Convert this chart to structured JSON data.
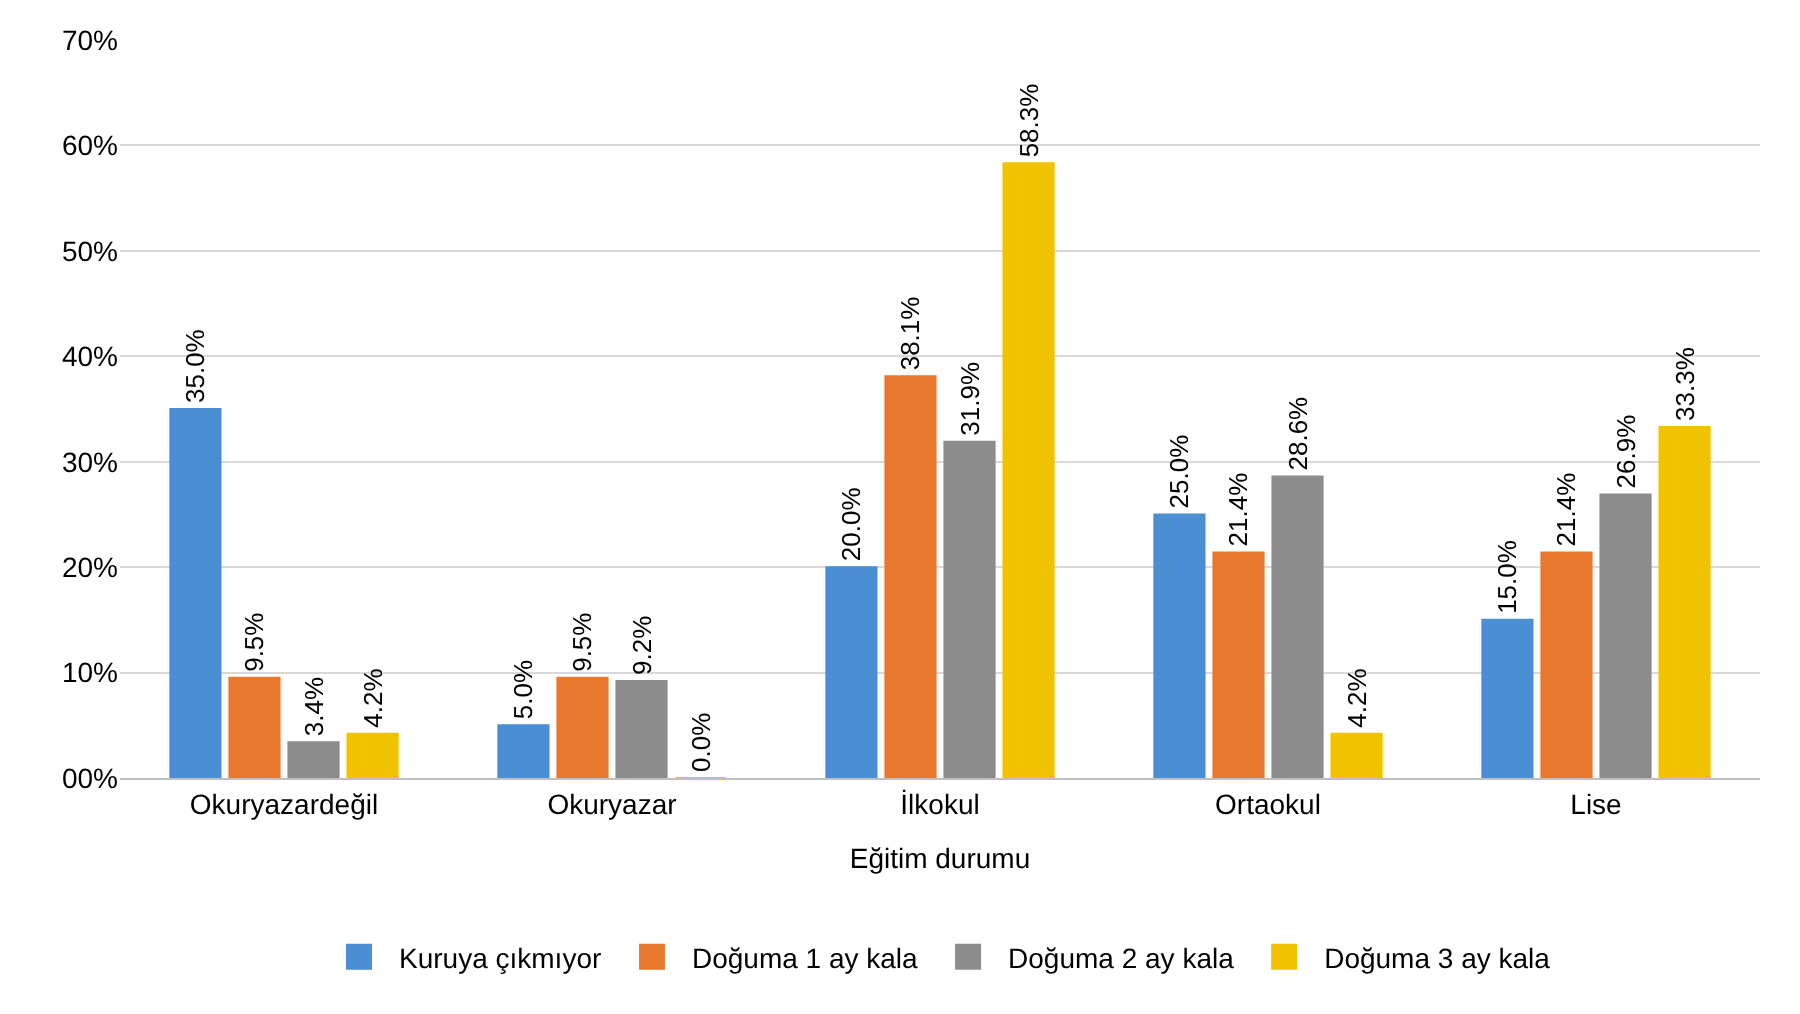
{
  "chart_data": {
    "type": "bar",
    "xlabel": "Eğitim durumu",
    "categories": [
      "Okuryazardeğil",
      "Okuryazar",
      "İlkokul",
      "Ortaokul",
      "Lise"
    ],
    "series": [
      {
        "name": "Kuruya çıkmıyor",
        "color": "#4a8fd4",
        "values": [
          35.0,
          5.0,
          20.0,
          25.0,
          15.0
        ],
        "value_labels": [
          "35.0%",
          "5.0%",
          "20.0%",
          "25.0%",
          "15.0%"
        ]
      },
      {
        "name": "Doğuma 1 ay kala",
        "color": "#e8792e",
        "values": [
          9.5,
          9.5,
          38.1,
          21.4,
          21.4
        ],
        "value_labels": [
          "9.5%",
          "9.5%",
          "38.1%",
          "21.4%",
          "21.4%"
        ]
      },
      {
        "name": "Doğuma 2 ay kala",
        "color": "#8c8c8c",
        "values": [
          3.4,
          9.2,
          31.9,
          28.6,
          26.9
        ],
        "value_labels": [
          "3.4%",
          "9.2%",
          "31.9%",
          "28.6%",
          "26.9%"
        ]
      },
      {
        "name": "Doğuma 3 ay kala",
        "color": "#f2c200",
        "values": [
          4.2,
          0.0,
          58.3,
          4.2,
          33.3
        ],
        "value_labels": [
          "4.2%",
          "0.0%",
          "58.3%",
          "4.2%",
          "33.3%"
        ]
      }
    ],
    "ylim": [
      0,
      70
    ],
    "yticks": [
      {
        "value": 0,
        "label": "00%"
      },
      {
        "value": 10,
        "label": "10%"
      },
      {
        "value": 20,
        "label": "20%"
      },
      {
        "value": 30,
        "label": "30%"
      },
      {
        "value": 40,
        "label": "40%"
      },
      {
        "value": 50,
        "label": "50%"
      },
      {
        "value": 60,
        "label": "60%"
      },
      {
        "value": 70,
        "label": "70%"
      }
    ],
    "grid": "y",
    "legend": "bottom"
  }
}
